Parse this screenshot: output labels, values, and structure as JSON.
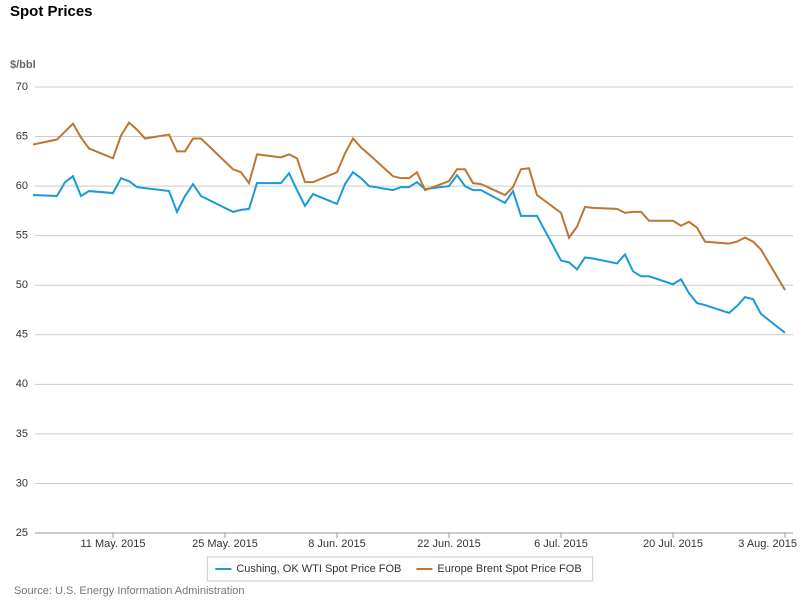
{
  "chart_data": {
    "type": "line",
    "title": "Spot Prices",
    "y_label": "$/bbl",
    "source": "Source: U.S. Energy Information Administration",
    "x": [
      "2015-05-01",
      "2015-05-04",
      "2015-05-05",
      "2015-05-06",
      "2015-05-07",
      "2015-05-08",
      "2015-05-11",
      "2015-05-12",
      "2015-05-13",
      "2015-05-14",
      "2015-05-15",
      "2015-05-18",
      "2015-05-19",
      "2015-05-20",
      "2015-05-21",
      "2015-05-22",
      "2015-05-26",
      "2015-05-27",
      "2015-05-28",
      "2015-05-29",
      "2015-06-01",
      "2015-06-02",
      "2015-06-03",
      "2015-06-04",
      "2015-06-05",
      "2015-06-08",
      "2015-06-09",
      "2015-06-10",
      "2015-06-11",
      "2015-06-12",
      "2015-06-15",
      "2015-06-16",
      "2015-06-17",
      "2015-06-18",
      "2015-06-19",
      "2015-06-22",
      "2015-06-23",
      "2015-06-24",
      "2015-06-25",
      "2015-06-26",
      "2015-06-29",
      "2015-06-30",
      "2015-07-01",
      "2015-07-02",
      "2015-07-03",
      "2015-07-06",
      "2015-07-07",
      "2015-07-08",
      "2015-07-09",
      "2015-07-10",
      "2015-07-13",
      "2015-07-14",
      "2015-07-15",
      "2015-07-16",
      "2015-07-17",
      "2015-07-20",
      "2015-07-21",
      "2015-07-22",
      "2015-07-23",
      "2015-07-24",
      "2015-07-27",
      "2015-07-28",
      "2015-07-29",
      "2015-07-30",
      "2015-07-31",
      "2015-08-03"
    ],
    "series": [
      {
        "name": "Cushing, OK WTI Spot Price FOB",
        "color": "#1a9ad6",
        "values": [
          59.1,
          59.0,
          60.4,
          61.0,
          59.0,
          59.5,
          59.3,
          60.8,
          60.5,
          59.9,
          59.8,
          59.5,
          57.4,
          59.0,
          60.2,
          59.0,
          57.4,
          57.6,
          57.7,
          60.3,
          60.3,
          61.3,
          59.6,
          58.0,
          59.2,
          58.2,
          60.2,
          61.4,
          60.8,
          60.0,
          59.6,
          59.9,
          59.9,
          60.4,
          59.7,
          60.0,
          61.1,
          60.0,
          59.6,
          59.6,
          58.3,
          59.5,
          57.0,
          57.0,
          57.0,
          52.5,
          52.3,
          51.6,
          52.8,
          52.7,
          52.2,
          53.1,
          51.4,
          50.9,
          50.9,
          50.1,
          50.6,
          49.2,
          48.2,
          48.0,
          47.2,
          47.9,
          48.8,
          48.6,
          47.1,
          45.2
        ]
      },
      {
        "name": "Europe Brent Spot Price FOB",
        "color": "#bd7632",
        "values": [
          64.2,
          64.7,
          65.5,
          66.3,
          64.9,
          63.8,
          62.8,
          65.1,
          66.4,
          65.7,
          64.8,
          65.2,
          63.5,
          63.5,
          64.8,
          64.8,
          61.7,
          61.4,
          60.3,
          63.2,
          62.9,
          63.2,
          62.8,
          60.4,
          60.4,
          61.4,
          63.3,
          64.8,
          63.9,
          63.2,
          61.0,
          60.8,
          60.8,
          61.4,
          59.6,
          60.5,
          61.7,
          61.7,
          60.3,
          60.2,
          59.1,
          59.9,
          61.7,
          61.8,
          59.1,
          57.3,
          54.8,
          55.9,
          57.9,
          57.8,
          57.7,
          57.3,
          57.4,
          57.4,
          56.5,
          56.5,
          56.0,
          56.4,
          55.8,
          54.4,
          54.2,
          54.4,
          54.8,
          54.4,
          53.6,
          49.5
        ]
      }
    ],
    "xlim": [
      "2015-05-01",
      "2015-08-04"
    ],
    "xticks": [
      {
        "value": "2015-05-11",
        "label": "11 May. 2015"
      },
      {
        "value": "2015-05-25",
        "label": "25 May. 2015"
      },
      {
        "value": "2015-06-08",
        "label": "8 Jun. 2015"
      },
      {
        "value": "2015-06-22",
        "label": "22 Jun. 2015"
      },
      {
        "value": "2015-07-06",
        "label": "6 Jul. 2015"
      },
      {
        "value": "2015-07-20",
        "label": "20 Jul. 2015"
      },
      {
        "value": "2015-08-03",
        "label": "3 Aug. 2015"
      }
    ],
    "ylim": [
      25,
      70
    ],
    "yticks": [
      25,
      30,
      35,
      40,
      45,
      50,
      55,
      60,
      65,
      70
    ],
    "grid": true,
    "legend": "bottom"
  }
}
